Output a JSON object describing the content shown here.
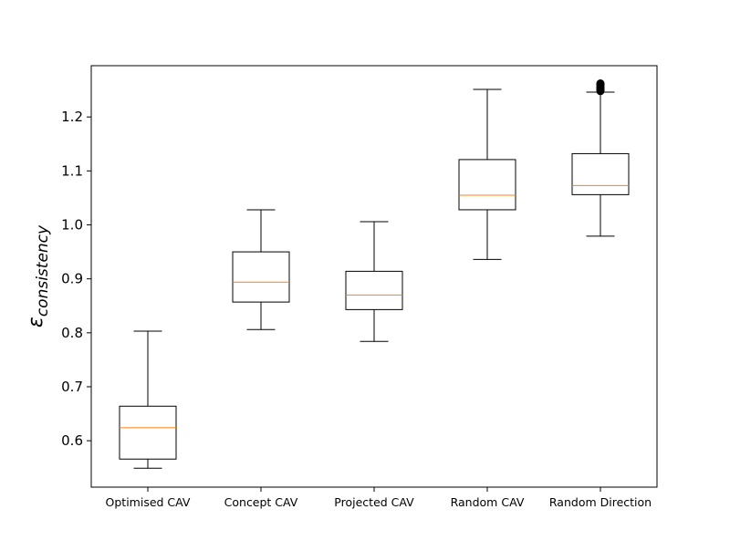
{
  "chart_data": {
    "type": "box",
    "title": "",
    "xlabel": "",
    "ylabel_symbol": "ε",
    "ylabel_subscript": "consistency",
    "ylim": [
      0.514,
      1.295
    ],
    "yticks": [
      0.6,
      0.7,
      0.8,
      0.9,
      1.0,
      1.1,
      1.2
    ],
    "ytick_labels": [
      "0.6",
      "0.7",
      "0.8",
      "0.9",
      "1.0",
      "1.1",
      "1.2"
    ],
    "grid": false,
    "categories": [
      "Optimised CAV",
      "Concept CAV",
      "Projected CAV",
      "Random CAV",
      "Random Direction"
    ],
    "boxes": [
      {
        "whisker_low": 0.549,
        "q1": 0.566,
        "median": 0.624,
        "q3": 0.664,
        "whisker_high": 0.803,
        "outliers": []
      },
      {
        "whisker_low": 0.806,
        "q1": 0.857,
        "median": 0.894,
        "q3": 0.95,
        "whisker_high": 1.028,
        "outliers": []
      },
      {
        "whisker_low": 0.784,
        "q1": 0.843,
        "median": 0.87,
        "q3": 0.914,
        "whisker_high": 1.006,
        "outliers": []
      },
      {
        "whisker_low": 0.936,
        "q1": 1.028,
        "median": 1.055,
        "q3": 1.121,
        "whisker_high": 1.251,
        "outliers": []
      },
      {
        "whisker_low": 0.979,
        "q1": 1.056,
        "median": 1.073,
        "q3": 1.132,
        "whisker_high": 1.246,
        "outliers": [
          1.248,
          1.251,
          1.254,
          1.257,
          1.26,
          1.262
        ]
      }
    ],
    "colors": {
      "box": "#000000",
      "median": "#ff7f0e",
      "outlier": "#000000"
    }
  }
}
